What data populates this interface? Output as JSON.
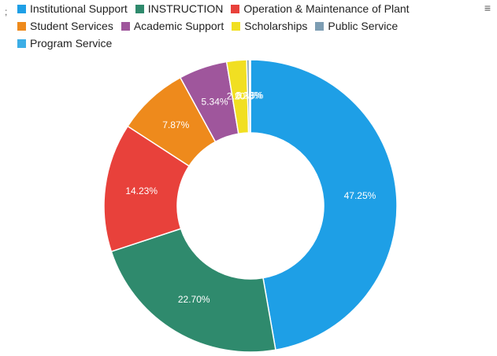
{
  "chart_data": {
    "type": "pie",
    "categories": [
      "Institutional Support",
      "INSTRUCTION",
      "Operation & Maintenance of Plant",
      "Student Services",
      "Academic Support",
      "Scholarships",
      "Public Service",
      "Program Service"
    ],
    "values": [
      47.25,
      22.7,
      14.23,
      7.87,
      5.34,
      2.2,
      0.28,
      0.13
    ],
    "value_labels": [
      "47.25%",
      "22.70%",
      "14.23%",
      "7.87%",
      "5.34%",
      "2.20%",
      "0.28%",
      "0.13%"
    ],
    "colors": [
      "#1e9fe6",
      "#2f8a6d",
      "#e8413b",
      "#ee8a1c",
      "#9f569c",
      "#f1df22",
      "#7d9db3",
      "#3caee6"
    ],
    "donut": true,
    "legend": "top"
  }
}
